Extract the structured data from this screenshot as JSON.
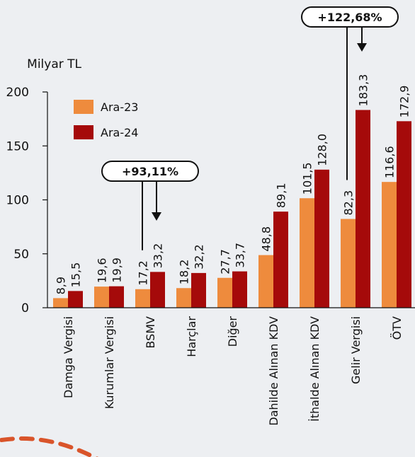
{
  "chart_data": {
    "type": "bar",
    "ylabel": "Milyar TL",
    "ylim": [
      0,
      200
    ],
    "yticks": [
      0,
      50,
      100,
      150,
      200
    ],
    "grid": false,
    "legend_position": "top-left",
    "categories": [
      "Damga Vergisi",
      "Kurumlar Vergisi",
      "BSMV",
      "Harçlar",
      "Diğer",
      "Dahilde Alınan KDV",
      "İthalde Alınan KDV",
      "Gelir Vergisi",
      "ÖTV"
    ],
    "series": [
      {
        "name": "Ara-23",
        "color": "#ee8b3d",
        "values": [
          8.9,
          19.6,
          17.2,
          18.2,
          27.7,
          48.8,
          101.5,
          82.3,
          116.6
        ],
        "labels": [
          "8,9",
          "19,6",
          "17,2",
          "18,2",
          "27,7",
          "48,8",
          "101,5",
          "82,3",
          "116,6"
        ]
      },
      {
        "name": "Ara-24",
        "color": "#a50a0a",
        "values": [
          15.5,
          19.9,
          33.2,
          32.2,
          33.7,
          89.1,
          128.0,
          183.3,
          172.9
        ],
        "labels": [
          "15,5",
          "19,9",
          "33,2",
          "32,2",
          "33,7",
          "89,1",
          "128,0",
          "183,3",
          "172,9"
        ]
      }
    ],
    "annotations": [
      {
        "text": "+93,11%",
        "category_index": 2
      },
      {
        "text": "+122,68%",
        "category_index": 7
      }
    ]
  }
}
